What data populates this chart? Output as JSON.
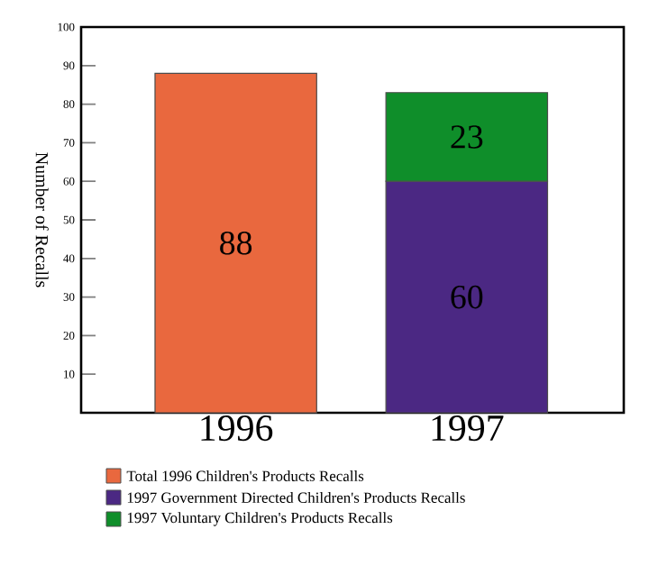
{
  "chart_data": {
    "type": "bar",
    "stacked": true,
    "ylabel": "Number of Recalls",
    "categories": [
      "1996",
      "1997"
    ],
    "series": [
      {
        "name": "Total 1996 Children's Products Recalls",
        "color": "#e9683e",
        "values": [
          88,
          null
        ]
      },
      {
        "name": "1997 Government Directed Children's Products Recalls",
        "color": "#4b2883",
        "values": [
          null,
          60
        ]
      },
      {
        "name": "1997 Voluntary Children's Products Recalls",
        "color": "#0f8e2a",
        "values": [
          null,
          23
        ]
      }
    ],
    "ylim": [
      0,
      100
    ],
    "yticks": [
      10,
      20,
      30,
      40,
      50,
      60,
      70,
      80,
      90,
      100
    ],
    "data_labels": true,
    "legend": "bottom",
    "grid": false
  }
}
